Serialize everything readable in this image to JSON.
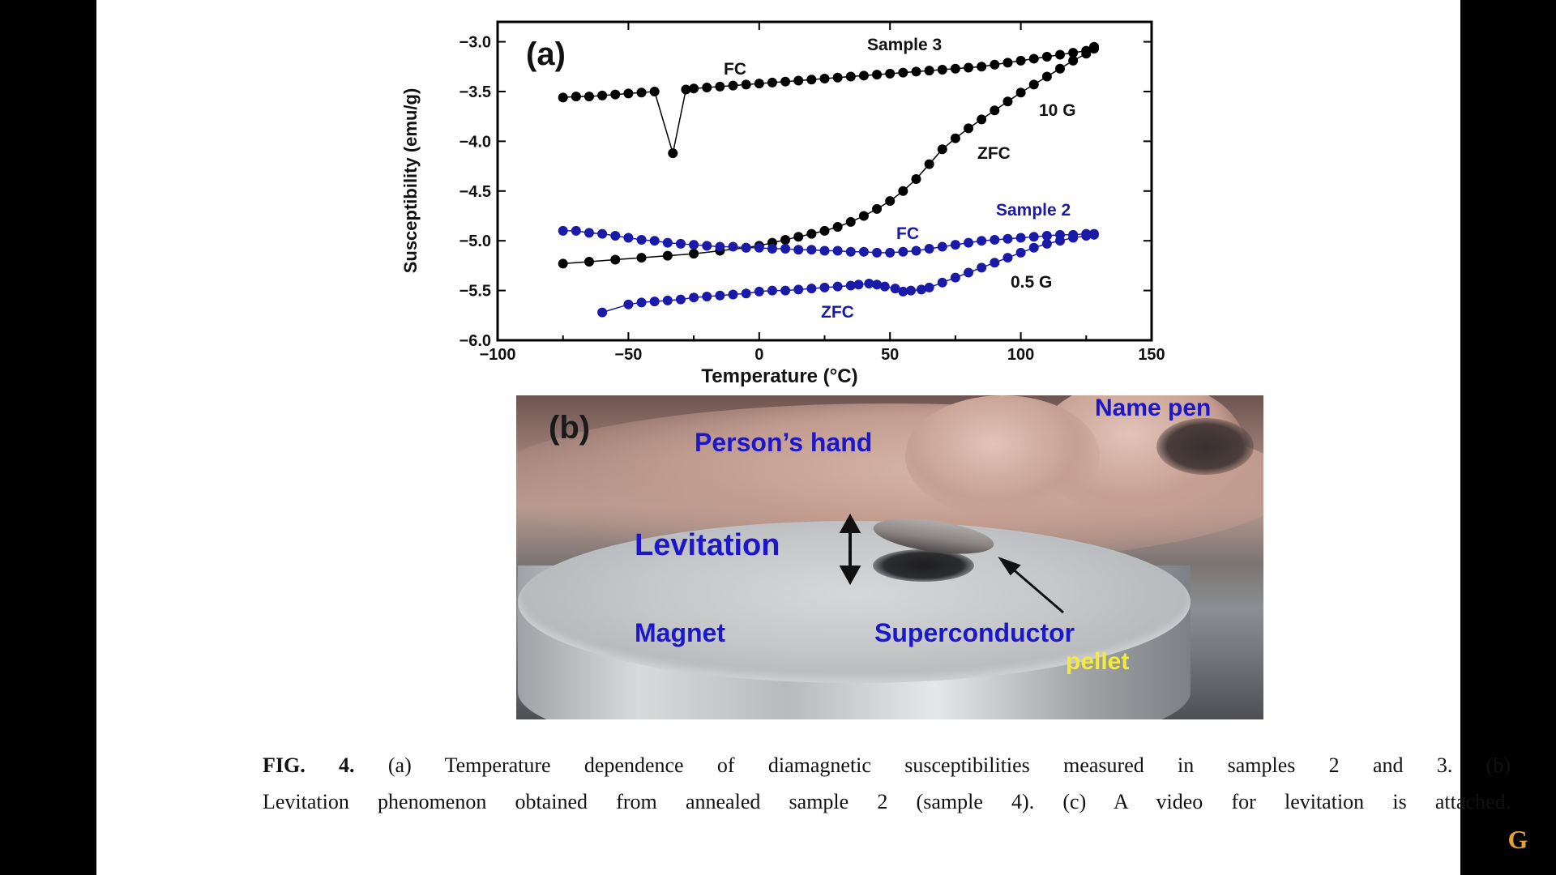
{
  "chart_data": {
    "type": "scatter",
    "panel_label": "(a)",
    "xlabel": "Temperature (°C)",
    "ylabel": "Susceptibility (emu/g)",
    "xlim": [
      -100,
      150
    ],
    "ylim": [
      -6.0,
      -2.8
    ],
    "xticks": [
      -100,
      -50,
      0,
      50,
      100,
      150
    ],
    "yticks": [
      -6.0,
      -5.5,
      -5.0,
      -4.5,
      -4.0,
      -3.5,
      -3.0
    ],
    "xtick_labels": [
      "−100",
      "−50",
      "0",
      "50",
      "100",
      "150"
    ],
    "ytick_labels": [
      "−6.0",
      "−5.5",
      "−5.0",
      "−4.5",
      "−4.0",
      "−3.5",
      "−3.0"
    ],
    "series": [
      {
        "name": "FC",
        "sample": "Sample 3",
        "color": "#000000",
        "x": [
          -75,
          -70,
          -65,
          -60,
          -55,
          -50,
          -45,
          -40,
          -33,
          -28,
          -25,
          -20,
          -15,
          -10,
          -5,
          0,
          5,
          10,
          15,
          20,
          25,
          30,
          35,
          40,
          45,
          50,
          55,
          60,
          65,
          70,
          75,
          80,
          85,
          90,
          95,
          100,
          105,
          110,
          115,
          120,
          125,
          128
        ],
        "y": [
          -3.56,
          -3.55,
          -3.55,
          -3.54,
          -3.53,
          -3.52,
          -3.51,
          -3.5,
          -4.12,
          -3.48,
          -3.47,
          -3.46,
          -3.45,
          -3.44,
          -3.43,
          -3.42,
          -3.41,
          -3.4,
          -3.39,
          -3.38,
          -3.37,
          -3.36,
          -3.35,
          -3.34,
          -3.33,
          -3.32,
          -3.31,
          -3.3,
          -3.29,
          -3.28,
          -3.27,
          -3.26,
          -3.25,
          -3.23,
          -3.21,
          -3.19,
          -3.17,
          -3.15,
          -3.13,
          -3.11,
          -3.09,
          -3.07
        ]
      },
      {
        "name": "ZFC",
        "sample": "Sample 3",
        "color": "#000000",
        "x": [
          -75,
          -65,
          -55,
          -45,
          -35,
          -25,
          -15,
          -5,
          0,
          5,
          10,
          15,
          20,
          25,
          30,
          35,
          40,
          45,
          50,
          55,
          60,
          65,
          70,
          75,
          80,
          85,
          90,
          95,
          100,
          105,
          110,
          115,
          120,
          125,
          128
        ],
        "y": [
          -5.23,
          -5.21,
          -5.19,
          -5.17,
          -5.15,
          -5.13,
          -5.1,
          -5.07,
          -5.05,
          -5.02,
          -4.99,
          -4.96,
          -4.93,
          -4.9,
          -4.86,
          -4.81,
          -4.75,
          -4.68,
          -4.6,
          -4.5,
          -4.38,
          -4.23,
          -4.08,
          -3.97,
          -3.87,
          -3.78,
          -3.69,
          -3.6,
          -3.51,
          -3.43,
          -3.35,
          -3.27,
          -3.19,
          -3.12,
          -3.05
        ]
      },
      {
        "name": "FC",
        "sample": "Sample 2",
        "color": "#1a1aa8",
        "x": [
          -75,
          -70,
          -65,
          -60,
          -55,
          -50,
          -45,
          -40,
          -35,
          -30,
          -25,
          -20,
          -15,
          -10,
          -5,
          0,
          5,
          10,
          15,
          20,
          25,
          30,
          35,
          40,
          45,
          50,
          55,
          60,
          65,
          70,
          75,
          80,
          85,
          90,
          95,
          100,
          105,
          110,
          115,
          120,
          125,
          128
        ],
        "y": [
          -4.9,
          -4.9,
          -4.92,
          -4.93,
          -4.95,
          -4.97,
          -4.99,
          -5.0,
          -5.02,
          -5.03,
          -5.04,
          -5.05,
          -5.06,
          -5.06,
          -5.07,
          -5.07,
          -5.08,
          -5.08,
          -5.09,
          -5.09,
          -5.1,
          -5.1,
          -5.11,
          -5.11,
          -5.12,
          -5.12,
          -5.11,
          -5.1,
          -5.08,
          -5.06,
          -5.04,
          -5.02,
          -5.0,
          -4.99,
          -4.98,
          -4.97,
          -4.96,
          -4.95,
          -4.94,
          -4.94,
          -4.93,
          -4.93
        ]
      },
      {
        "name": "ZFC",
        "sample": "Sample 2",
        "color": "#1a1aa8",
        "x": [
          -60,
          -50,
          -45,
          -40,
          -35,
          -30,
          -25,
          -20,
          -15,
          -10,
          -5,
          0,
          5,
          10,
          15,
          20,
          25,
          30,
          35,
          38,
          42,
          45,
          48,
          52,
          55,
          58,
          62,
          65,
          70,
          75,
          80,
          85,
          90,
          95,
          100,
          105,
          110,
          115,
          120,
          125,
          128
        ],
        "y": [
          -5.72,
          -5.64,
          -5.62,
          -5.61,
          -5.6,
          -5.59,
          -5.57,
          -5.56,
          -5.55,
          -5.54,
          -5.53,
          -5.51,
          -5.5,
          -5.5,
          -5.49,
          -5.48,
          -5.47,
          -5.46,
          -5.45,
          -5.44,
          -5.43,
          -5.44,
          -5.46,
          -5.48,
          -5.51,
          -5.5,
          -5.49,
          -5.47,
          -5.42,
          -5.37,
          -5.32,
          -5.27,
          -5.22,
          -5.17,
          -5.12,
          -5.07,
          -5.03,
          -5.0,
          -4.97,
          -4.95,
          -4.94
        ]
      }
    ],
    "annotations": {
      "sample3": "Sample 3",
      "fc3": "FC",
      "field3": "10 G",
      "zfc3": "ZFC",
      "sample2": "Sample 2",
      "fc2": "FC",
      "field2": "0.5 G",
      "zfc2": "ZFC"
    }
  },
  "photo": {
    "panel_label": "(b)",
    "labels": {
      "name_pen": "Name pen",
      "hand": "Person’s hand",
      "levitation": "Levitation",
      "magnet": "Magnet",
      "superconductor": "Superconductor",
      "pellet": "pellet"
    },
    "colors": {
      "label": "#1c17c9",
      "pellet_label": "#f2ea3c"
    }
  },
  "caption": {
    "fig": "FIG. 4.",
    "line1": "(a) Temperature dependence of diamagnetic susceptibilities measured in samples 2 and 3. (b)",
    "line2": "Levitation phenomenon obtained from annealed sample 2 (sample 4). (c) A video for levitation is attached."
  },
  "watermark": {
    "letter": "G"
  }
}
